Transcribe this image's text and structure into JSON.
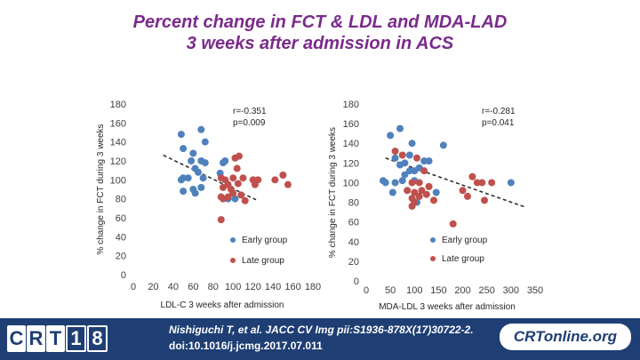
{
  "slide": {
    "title_line1": "Percent change in FCT & LDL and MDA-LAD",
    "title_line2": "3 weeks after admission in ACS"
  },
  "colors": {
    "title": "#7b2a8c",
    "early_group": "#4f81bd",
    "late_group": "#c0504d",
    "footer": "#1f3f74"
  },
  "chart_data": [
    {
      "type": "scatter",
      "xlabel": "LDL-C 3 weeks after admission",
      "ylabel": "% change in FCT during 3 weeks",
      "xlim": [
        0,
        180
      ],
      "ylim": [
        0,
        180
      ],
      "x_ticks": [
        0,
        20,
        40,
        60,
        80,
        100,
        120,
        140,
        160,
        180
      ],
      "y_ticks": [
        0,
        20,
        40,
        60,
        80,
        100,
        120,
        140,
        160,
        180
      ],
      "stat_r": "r=-0.351",
      "stat_p": "p=0.009",
      "grid": false,
      "legend": "bottom-right",
      "trendline": {
        "style": "dashed",
        "from": [
          30,
          126
        ],
        "to": [
          123,
          79
        ]
      },
      "series": [
        {
          "name": "Early group",
          "color": "#4f81bd",
          "points": [
            [
              48,
              148
            ],
            [
              68,
              153
            ],
            [
              72,
              140
            ],
            [
              50,
              133
            ],
            [
              60,
              128
            ],
            [
              58,
              120
            ],
            [
              68,
              120
            ],
            [
              62,
              112
            ],
            [
              65,
              108
            ],
            [
              72,
              118
            ],
            [
              70,
              102
            ],
            [
              50,
              102
            ],
            [
              48,
              100
            ],
            [
              55,
              102
            ],
            [
              50,
              88
            ],
            [
              60,
              90
            ],
            [
              62,
              86
            ],
            [
              68,
              92
            ],
            [
              90,
              118
            ],
            [
              92,
              120
            ],
            [
              87,
              107
            ],
            [
              95,
              80
            ],
            [
              102,
              80
            ]
          ]
        },
        {
          "name": "Late group",
          "color": "#c0504d",
          "points": [
            [
              102,
              123
            ],
            [
              106,
              125
            ],
            [
              104,
              112
            ],
            [
              88,
              102
            ],
            [
              92,
              100
            ],
            [
              100,
              102
            ],
            [
              110,
              102
            ],
            [
              90,
              92
            ],
            [
              95,
              95
            ],
            [
              98,
              90
            ],
            [
              105,
              96
            ],
            [
              90,
              80
            ],
            [
              95,
              82
            ],
            [
              100,
              86
            ],
            [
              88,
              82
            ],
            [
              108,
              84
            ],
            [
              112,
              78
            ],
            [
              120,
              100
            ],
            [
              125,
              100
            ],
            [
              122,
              95
            ],
            [
              142,
              100
            ],
            [
              150,
              105
            ],
            [
              155,
              95
            ],
            [
              88,
              58
            ]
          ]
        }
      ]
    },
    {
      "type": "scatter",
      "xlabel": "MDA-LDL 3 weeks after admission",
      "ylabel": "% change in FCT during 3 weeks",
      "xlim": [
        0,
        350
      ],
      "ylim": [
        0,
        180
      ],
      "x_ticks": [
        0,
        50,
        100,
        150,
        200,
        250,
        300,
        350
      ],
      "y_ticks": [
        0,
        20,
        40,
        60,
        80,
        100,
        120,
        140,
        160,
        180
      ],
      "stat_r": "r=-0.281",
      "stat_p": "p=0.041",
      "grid": false,
      "legend": "bottom-right",
      "trendline": {
        "style": "dashed",
        "from": [
          40,
          125
        ],
        "to": [
          330,
          75
        ]
      },
      "series": [
        {
          "name": "Early group",
          "color": "#4f81bd",
          "points": [
            [
              50,
              148
            ],
            [
              70,
              155
            ],
            [
              90,
              128
            ],
            [
              95,
              140
            ],
            [
              60,
              125
            ],
            [
              80,
              120
            ],
            [
              100,
              112
            ],
            [
              110,
              115
            ],
            [
              120,
              122
            ],
            [
              130,
              122
            ],
            [
              70,
              118
            ],
            [
              80,
              108
            ],
            [
              90,
              112
            ],
            [
              100,
              102
            ],
            [
              35,
              102
            ],
            [
              40,
              100
            ],
            [
              60,
              100
            ],
            [
              75,
              102
            ],
            [
              55,
              90
            ],
            [
              145,
              90
            ],
            [
              105,
              80
            ],
            [
              160,
              138
            ],
            [
              300,
              100
            ]
          ]
        },
        {
          "name": "Late group",
          "color": "#c0504d",
          "points": [
            [
              60,
              132
            ],
            [
              75,
              128
            ],
            [
              105,
              125
            ],
            [
              120,
              112
            ],
            [
              95,
              100
            ],
            [
              110,
              100
            ],
            [
              130,
              96
            ],
            [
              85,
              92
            ],
            [
              100,
              90
            ],
            [
              115,
              92
            ],
            [
              125,
              88
            ],
            [
              95,
              84
            ],
            [
              110,
              86
            ],
            [
              140,
              82
            ],
            [
              100,
              80
            ],
            [
              95,
              76
            ],
            [
              220,
              106
            ],
            [
              230,
              100
            ],
            [
              240,
              100
            ],
            [
              260,
              100
            ],
            [
              200,
              92
            ],
            [
              210,
              86
            ],
            [
              245,
              82
            ],
            [
              180,
              58
            ]
          ]
        }
      ]
    }
  ],
  "footer": {
    "logo_letters": [
      "C",
      "R",
      "T"
    ],
    "logo_digits": [
      "1",
      "8"
    ],
    "citation_line1": "Nishiguchi T, et al. JACC CV Img pii:S1936-878X(17)30722-2.",
    "citation_line2": "doi:10.1016/j.jcmg.2017.07.011",
    "online_logo": "CRTonline.org"
  }
}
